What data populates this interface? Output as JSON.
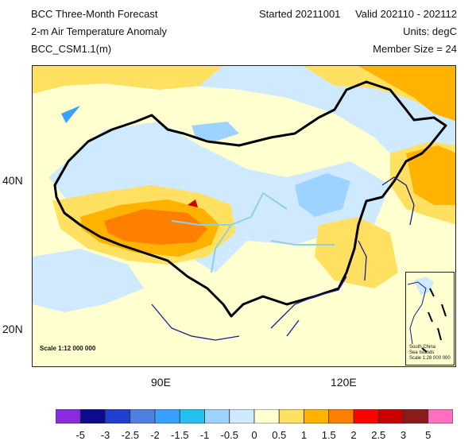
{
  "header": {
    "title": "BCC Three-Month Forecast",
    "variable": "2-m Air Temperature Anomaly",
    "model": "BCC_CSM1.1(m)",
    "started": "Started 20211001",
    "valid": "Valid 202110 - 202112",
    "units": "Units: degC",
    "member_size": "Member Size = 24"
  },
  "axes": {
    "lat_labels": [
      "40N",
      "20N"
    ],
    "lon_labels": [
      "90E",
      "120E"
    ]
  },
  "map": {
    "scale_label": "Scale 1:12 000 000",
    "inset": {
      "caption_lines": [
        "South China",
        "Sea Islands",
        "Scale 1:28 000 000"
      ]
    }
  },
  "colorbar": {
    "labels": [
      "-5",
      "-3",
      "-2.5",
      "-2",
      "-1.5",
      "-1",
      "-0.5",
      "0",
      "0.5",
      "1",
      "1.5",
      "2",
      "2.5",
      "3",
      "5"
    ],
    "colors": [
      "#8a2be2",
      "#0b0b8c",
      "#1f3fd1",
      "#4f7fe0",
      "#3aa0ff",
      "#23c0f0",
      "#9fd3ff",
      "#cfeaff",
      "#ffffd0",
      "#ffe060",
      "#ffb300",
      "#ff7f00",
      "#ff0000",
      "#c80000",
      "#8b1a1a",
      "#ff6fbf"
    ]
  },
  "colors": {
    "border": "#000000",
    "coast": "#1a1a8c",
    "river": "#8ed0e8"
  }
}
